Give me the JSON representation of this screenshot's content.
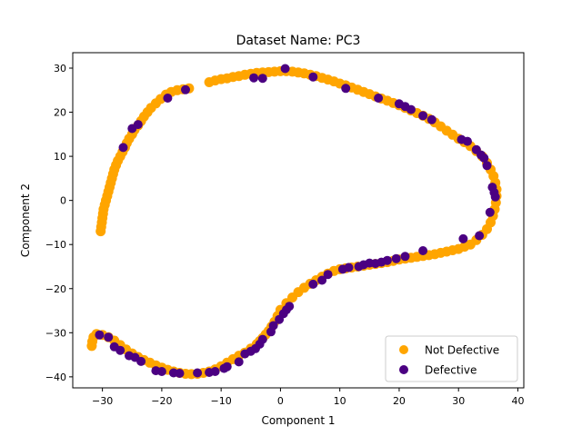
{
  "chart_data": {
    "type": "scatter",
    "title": "Dataset Name: PC3",
    "xlabel": "Component 1",
    "ylabel": "Component 2",
    "xlim": [
      -35,
      41
    ],
    "ylim": [
      -42.5,
      33.5
    ],
    "xticks": [
      -30,
      -20,
      -10,
      0,
      10,
      20,
      30,
      40
    ],
    "yticks": [
      -40,
      -30,
      -20,
      -10,
      0,
      10,
      20,
      30
    ],
    "legend_position": "lower right",
    "grid": false,
    "series": [
      {
        "name": "Not Defective",
        "color": "#ffa500",
        "points": [
          [
            -30.3,
            -7
          ],
          [
            -30.2,
            -6
          ],
          [
            -30.1,
            -5
          ],
          [
            -30,
            -4
          ],
          [
            -29.9,
            -3
          ],
          [
            -29.8,
            -2
          ],
          [
            -29.6,
            -1
          ],
          [
            -29.4,
            0
          ],
          [
            -29.2,
            1
          ],
          [
            -29,
            2
          ],
          [
            -28.8,
            3
          ],
          [
            -28.6,
            4
          ],
          [
            -28.4,
            5
          ],
          [
            -28.2,
            6
          ],
          [
            -28,
            7
          ],
          [
            -27.7,
            8
          ],
          [
            -27.4,
            9
          ],
          [
            -27,
            10
          ],
          [
            -26.6,
            11
          ],
          [
            -26.2,
            12
          ],
          [
            -25.9,
            13
          ],
          [
            -25.5,
            14
          ],
          [
            -25,
            15
          ],
          [
            -24.6,
            16
          ],
          [
            -24,
            17
          ],
          [
            -23.5,
            18
          ],
          [
            -23,
            19
          ],
          [
            -22.4,
            20
          ],
          [
            -21.8,
            21
          ],
          [
            -21,
            22
          ],
          [
            -20.2,
            23
          ],
          [
            -19.3,
            24
          ],
          [
            -18.4,
            24.6
          ],
          [
            -17.4,
            25
          ],
          [
            -16.4,
            25.2
          ],
          [
            -15.4,
            25.4
          ],
          [
            -12,
            26.8
          ],
          [
            -11,
            27.2
          ],
          [
            -10,
            27.5
          ],
          [
            -9,
            27.7
          ],
          [
            -8,
            28
          ],
          [
            -7,
            28.2
          ],
          [
            -6,
            28.5
          ],
          [
            -5,
            28.7
          ],
          [
            -4,
            28.9
          ],
          [
            -3,
            29
          ],
          [
            -2,
            29.1
          ],
          [
            -1,
            29.2
          ],
          [
            0,
            29.3
          ],
          [
            1,
            29.3
          ],
          [
            2,
            29.2
          ],
          [
            3,
            29
          ],
          [
            4,
            28.8
          ],
          [
            5,
            28.5
          ],
          [
            6,
            28.2
          ],
          [
            7,
            27.8
          ],
          [
            8,
            27.4
          ],
          [
            9,
            27
          ],
          [
            10,
            26.5
          ],
          [
            11,
            26.1
          ],
          [
            12,
            25.6
          ],
          [
            13,
            25.1
          ],
          [
            14,
            24.6
          ],
          [
            15,
            24.1
          ],
          [
            16,
            23.6
          ],
          [
            17,
            23.1
          ],
          [
            18,
            22.6
          ],
          [
            19,
            22.1
          ],
          [
            20,
            21.6
          ],
          [
            21,
            21
          ],
          [
            22,
            20.4
          ],
          [
            23,
            19.8
          ],
          [
            24,
            19.2
          ],
          [
            25,
            18.5
          ],
          [
            26,
            17.7
          ],
          [
            27,
            16.8
          ],
          [
            28,
            15.8
          ],
          [
            29,
            14.9
          ],
          [
            30,
            14
          ],
          [
            31,
            13.2
          ],
          [
            32,
            12.3
          ],
          [
            33,
            11.2
          ],
          [
            34,
            10
          ],
          [
            34.8,
            8.5
          ],
          [
            35.4,
            7
          ],
          [
            35.9,
            5.5
          ],
          [
            36.2,
            4
          ],
          [
            36.4,
            2.5
          ],
          [
            36.4,
            1
          ],
          [
            36.3,
            -0.5
          ],
          [
            36.1,
            -2
          ],
          [
            35.8,
            -3.5
          ],
          [
            35.4,
            -5
          ],
          [
            34.8,
            -6.5
          ],
          [
            34,
            -7.8
          ],
          [
            33,
            -9
          ],
          [
            32,
            -10
          ],
          [
            31,
            -10.5
          ],
          [
            30,
            -11
          ],
          [
            29,
            -11.3
          ],
          [
            28,
            -11.6
          ],
          [
            27,
            -11.9
          ],
          [
            26,
            -12.2
          ],
          [
            25,
            -12.4
          ],
          [
            24,
            -12.6
          ],
          [
            23,
            -12.8
          ],
          [
            22,
            -13
          ],
          [
            21,
            -13.2
          ],
          [
            20,
            -13.4
          ],
          [
            19,
            -13.7
          ],
          [
            18,
            -14
          ],
          [
            17,
            -14.2
          ],
          [
            16,
            -14.4
          ],
          [
            15,
            -14.6
          ],
          [
            14,
            -14.8
          ],
          [
            13,
            -15
          ],
          [
            12,
            -15.2
          ],
          [
            11,
            -15.4
          ],
          [
            10,
            -15.6
          ],
          [
            9,
            -16
          ],
          [
            8,
            -16.6
          ],
          [
            7,
            -17.3
          ],
          [
            6,
            -18.1
          ],
          [
            5,
            -18.9
          ],
          [
            4,
            -19.8
          ],
          [
            3,
            -20.8
          ],
          [
            2,
            -22
          ],
          [
            1,
            -23.3
          ],
          [
            0,
            -24.8
          ],
          [
            -0.5,
            -26.2
          ],
          [
            -1,
            -27.5
          ],
          [
            -1.5,
            -28.6
          ],
          [
            -2,
            -29.6
          ],
          [
            -2.5,
            -30.4
          ],
          [
            -3,
            -31.2
          ],
          [
            -3.5,
            -31.9
          ],
          [
            -4,
            -32.6
          ],
          [
            -5,
            -33.6
          ],
          [
            -6,
            -34.5
          ],
          [
            -7,
            -35.2
          ],
          [
            -8,
            -36
          ],
          [
            -9,
            -36.8
          ],
          [
            -10,
            -37.6
          ],
          [
            -11,
            -38.3
          ],
          [
            -12,
            -38.8
          ],
          [
            -13,
            -39.1
          ],
          [
            -14,
            -39.3
          ],
          [
            -15,
            -39.4
          ],
          [
            -16,
            -39.3
          ],
          [
            -17,
            -39.1
          ],
          [
            -18,
            -38.8
          ],
          [
            -19,
            -38.4
          ],
          [
            -20,
            -37.9
          ],
          [
            -21,
            -37.4
          ],
          [
            -22,
            -36.8
          ],
          [
            -23,
            -36.2
          ],
          [
            -24,
            -35.5
          ],
          [
            -25,
            -34.7
          ],
          [
            -26,
            -33.8
          ],
          [
            -27,
            -32.8
          ],
          [
            -28,
            -31.8
          ],
          [
            -29,
            -31
          ],
          [
            -30,
            -30.5
          ],
          [
            -31,
            -30.3
          ],
          [
            -31.5,
            -31
          ],
          [
            -31.7,
            -32
          ],
          [
            -31.8,
            -33
          ]
        ]
      },
      {
        "name": "Defective",
        "color": "#4b0082",
        "points": [
          [
            -26.5,
            12
          ],
          [
            -25,
            16.3
          ],
          [
            -24,
            17.2
          ],
          [
            -19,
            23.2
          ],
          [
            -16,
            25.1
          ],
          [
            -4.5,
            27.8
          ],
          [
            -3,
            27.7
          ],
          [
            0.8,
            29.9
          ],
          [
            5.5,
            28
          ],
          [
            11,
            25.4
          ],
          [
            16.5,
            23.2
          ],
          [
            20,
            21.9
          ],
          [
            21,
            21.3
          ],
          [
            22,
            20.6
          ],
          [
            24,
            19.2
          ],
          [
            25.5,
            18.3
          ],
          [
            30.5,
            13.8
          ],
          [
            31.5,
            13.4
          ],
          [
            33,
            11.5
          ],
          [
            33.8,
            10.3
          ],
          [
            34.3,
            9.6
          ],
          [
            34.8,
            7.9
          ],
          [
            35.7,
            3
          ],
          [
            36,
            1.8
          ],
          [
            36.2,
            0.8
          ],
          [
            35.3,
            -2.7
          ],
          [
            33.5,
            -8
          ],
          [
            30.8,
            -8.7
          ],
          [
            24,
            -11.4
          ],
          [
            21,
            -12.7
          ],
          [
            19.5,
            -13.2
          ],
          [
            18,
            -13.6
          ],
          [
            17,
            -14
          ],
          [
            16,
            -14.3
          ],
          [
            15,
            -14.2
          ],
          [
            14,
            -14.6
          ],
          [
            13.2,
            -15
          ],
          [
            11.5,
            -15.2
          ],
          [
            10.5,
            -15.6
          ],
          [
            8,
            -16.8
          ],
          [
            7,
            -18.1
          ],
          [
            5.5,
            -19
          ],
          [
            1.5,
            -24
          ],
          [
            1,
            -24.8
          ],
          [
            0.5,
            -25.7
          ],
          [
            -0.2,
            -27
          ],
          [
            -1.2,
            -28.4
          ],
          [
            -1.6,
            -29.8
          ],
          [
            -3,
            -31.5
          ],
          [
            -3.5,
            -32.6
          ],
          [
            -4.2,
            -33.6
          ],
          [
            -5,
            -34.2
          ],
          [
            -6,
            -34.8
          ],
          [
            -7,
            -36.6
          ],
          [
            -9,
            -37.7
          ],
          [
            -9.5,
            -38.1
          ],
          [
            -11,
            -38.8
          ],
          [
            -12,
            -39
          ],
          [
            -14,
            -39.1
          ],
          [
            -17,
            -39.2
          ],
          [
            -18,
            -39.1
          ],
          [
            -20,
            -38.8
          ],
          [
            -21,
            -38.6
          ],
          [
            -23.5,
            -36.5
          ],
          [
            -24.5,
            -35.6
          ],
          [
            -25.5,
            -35.2
          ],
          [
            -27,
            -34
          ],
          [
            -28,
            -33.2
          ],
          [
            -29,
            -31
          ],
          [
            -30.5,
            -30.5
          ]
        ]
      }
    ]
  }
}
